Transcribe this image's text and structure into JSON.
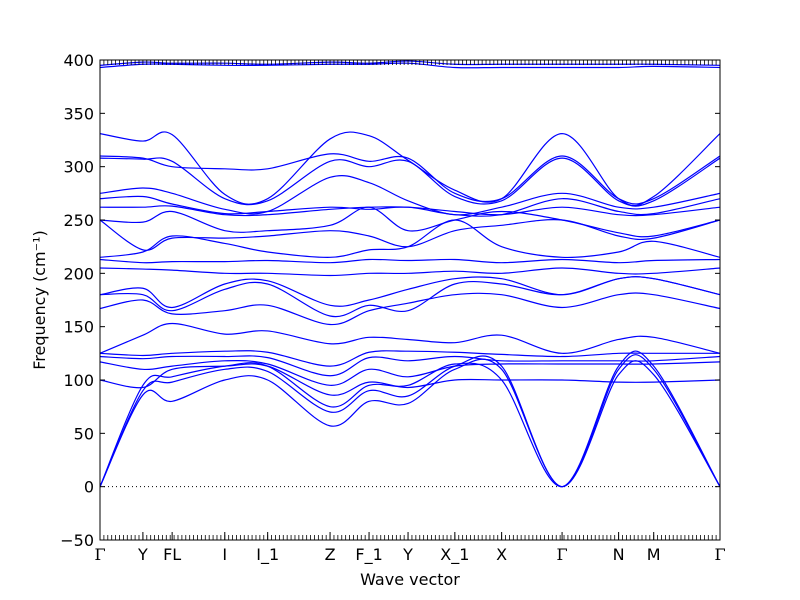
{
  "chart_data": {
    "type": "line",
    "title": "",
    "xlabel": "Wave vector",
    "ylabel": "Frequency (cm⁻¹)",
    "ylim": [
      -50,
      400
    ],
    "yticks": [
      -50,
      0,
      50,
      100,
      150,
      200,
      250,
      300,
      350,
      400
    ],
    "line_color": "#0000ff",
    "zero_line": {
      "y": 0,
      "style": "dotted",
      "color": "#000000"
    },
    "legend": "none",
    "grid": false,
    "xtick_labels": [
      {
        "label": "Γ",
        "x": 0
      },
      {
        "label": "Y",
        "x": 11
      },
      {
        "label": "FL",
        "x": 18.5
      },
      {
        "label": "I",
        "x": 32
      },
      {
        "label": "I_1",
        "x": 43
      },
      {
        "label": "Z",
        "x": 59
      },
      {
        "label": "F_1",
        "x": 69
      },
      {
        "label": "Y",
        "x": 79
      },
      {
        "label": "X_1",
        "x": 91
      },
      {
        "label": "X",
        "x": 103
      },
      {
        "label": "Γ",
        "x": 118.5
      },
      {
        "label": "N",
        "x": 133
      },
      {
        "label": "M",
        "x": 142
      },
      {
        "label": "Γ",
        "x": 159
      }
    ],
    "x_range": [
      0,
      159
    ],
    "series": [
      {
        "x": [
          0,
          11,
          18.5,
          32,
          43,
          59,
          69,
          79,
          91,
          103,
          118.5,
          133,
          142,
          159
        ],
        "values": [
          0,
          86,
          80,
          100,
          100,
          57,
          80,
          78,
          110,
          110,
          0,
          105,
          105,
          0
        ]
      },
      {
        "x": [
          0,
          11,
          18.5,
          32,
          43,
          59,
          69,
          79,
          91,
          103,
          118.5,
          133,
          142,
          159
        ],
        "values": [
          0,
          90,
          98,
          110,
          108,
          70,
          90,
          85,
          113,
          113,
          0,
          110,
          110,
          0
        ]
      },
      {
        "x": [
          0,
          11,
          18.5,
          32,
          43,
          59,
          69,
          79,
          91,
          103,
          118.5,
          133,
          142,
          159
        ],
        "values": [
          0,
          95,
          103,
          113,
          113,
          75,
          95,
          95,
          115,
          100,
          0,
          113,
          113,
          0
        ]
      },
      {
        "x": [
          0,
          11,
          18.5,
          32,
          43,
          59,
          69,
          79,
          91,
          103,
          118.5,
          133,
          142,
          159
        ],
        "values": [
          100,
          93,
          110,
          113,
          113,
          86,
          98,
          93,
          100,
          100,
          100,
          98,
          98,
          100
        ]
      },
      {
        "x": [
          0,
          11,
          18.5,
          32,
          43,
          59,
          69,
          79,
          91,
          103,
          118.5,
          133,
          142,
          159
        ],
        "values": [
          117,
          110,
          113,
          118,
          115,
          95,
          110,
          103,
          113,
          115,
          115,
          115,
          115,
          117
        ]
      },
      {
        "x": [
          0,
          11,
          18.5,
          32,
          43,
          59,
          69,
          79,
          91,
          103,
          118.5,
          133,
          142,
          159
        ],
        "values": [
          122,
          120,
          122,
          122,
          121,
          104,
          121,
          118,
          122,
          118,
          118,
          118,
          118,
          122
        ]
      },
      {
        "x": [
          0,
          11,
          18.5,
          32,
          43,
          59,
          69,
          79,
          91,
          103,
          118.5,
          133,
          142,
          159
        ],
        "values": [
          125,
          123,
          125,
          127,
          126,
          113,
          126,
          127,
          126,
          124,
          122,
          125,
          125,
          125
        ]
      },
      {
        "x": [
          0,
          11,
          18.5,
          32,
          43,
          59,
          69,
          79,
          91,
          103,
          118.5,
          133,
          142,
          159
        ],
        "values": [
          125,
          142,
          153,
          143,
          146,
          134,
          140,
          138,
          135,
          142,
          125,
          138,
          140,
          125
        ]
      },
      {
        "x": [
          0,
          11,
          18.5,
          32,
          43,
          59,
          69,
          79,
          91,
          103,
          118.5,
          133,
          142,
          159
        ],
        "values": [
          167,
          175,
          162,
          165,
          170,
          152,
          165,
          172,
          180,
          180,
          168,
          180,
          180,
          167
        ]
      },
      {
        "x": [
          0,
          11,
          18.5,
          32,
          43,
          59,
          69,
          79,
          91,
          103,
          118.5,
          133,
          142,
          159
        ],
        "values": [
          180,
          180,
          165,
          185,
          190,
          160,
          170,
          165,
          190,
          190,
          180,
          195,
          195,
          180
        ]
      },
      {
        "x": [
          0,
          11,
          18.5,
          32,
          43,
          59,
          69,
          79,
          91,
          103,
          118.5,
          133,
          142,
          159
        ],
        "values": [
          180,
          186,
          168,
          190,
          193,
          170,
          175,
          185,
          195,
          195,
          180,
          195,
          195,
          180
        ]
      },
      {
        "x": [
          0,
          11,
          18.5,
          32,
          43,
          59,
          69,
          79,
          91,
          103,
          118.5,
          133,
          142,
          159
        ],
        "values": [
          205,
          204,
          203,
          200,
          200,
          198,
          200,
          200,
          202,
          200,
          205,
          200,
          200,
          205
        ]
      },
      {
        "x": [
          0,
          11,
          18.5,
          32,
          43,
          59,
          69,
          79,
          91,
          103,
          118.5,
          133,
          142,
          159
        ],
        "values": [
          213,
          210,
          211,
          211,
          212,
          210,
          213,
          212,
          213,
          210,
          213,
          210,
          212,
          213
        ]
      },
      {
        "x": [
          0,
          11,
          18.5,
          32,
          43,
          59,
          69,
          79,
          91,
          103,
          118.5,
          133,
          142,
          159
        ],
        "values": [
          215,
          220,
          235,
          228,
          220,
          215,
          222,
          225,
          250,
          225,
          215,
          220,
          230,
          215
        ]
      },
      {
        "x": [
          0,
          11,
          18.5,
          32,
          43,
          59,
          69,
          79,
          91,
          103,
          118.5,
          133,
          142,
          159
        ],
        "values": [
          250,
          222,
          233,
          233,
          235,
          240,
          235,
          225,
          240,
          245,
          250,
          235,
          233,
          250
        ]
      },
      {
        "x": [
          0,
          11,
          18.5,
          32,
          43,
          59,
          69,
          79,
          91,
          103,
          118.5,
          133,
          142,
          159
        ],
        "values": [
          250,
          248,
          258,
          240,
          240,
          245,
          262,
          240,
          250,
          258,
          250,
          238,
          235,
          250
        ]
      },
      {
        "x": [
          0,
          11,
          18.5,
          32,
          43,
          59,
          69,
          79,
          91,
          103,
          118.5,
          133,
          142,
          159
        ],
        "values": [
          262,
          262,
          263,
          255,
          255,
          260,
          262,
          262,
          258,
          255,
          262,
          255,
          255,
          262
        ]
      },
      {
        "x": [
          0,
          11,
          18.5,
          32,
          43,
          59,
          69,
          79,
          91,
          103,
          118.5,
          133,
          142,
          159
        ],
        "values": [
          270,
          272,
          265,
          256,
          258,
          262,
          260,
          262,
          255,
          255,
          270,
          258,
          256,
          270
        ]
      },
      {
        "x": [
          0,
          11,
          18.5,
          32,
          43,
          59,
          69,
          79,
          91,
          103,
          118.5,
          133,
          142,
          159
        ],
        "values": [
          275,
          280,
          275,
          260,
          258,
          290,
          285,
          268,
          255,
          262,
          275,
          262,
          262,
          275
        ]
      },
      {
        "x": [
          0,
          11,
          18.5,
          32,
          43,
          59,
          69,
          79,
          91,
          103,
          118.5,
          133,
          142,
          159
        ],
        "values": [
          308,
          307,
          305,
          270,
          268,
          305,
          300,
          305,
          272,
          268,
          308,
          268,
          268,
          308
        ]
      },
      {
        "x": [
          0,
          11,
          18.5,
          32,
          43,
          59,
          69,
          79,
          91,
          103,
          118.5,
          133,
          142,
          159
        ],
        "values": [
          310,
          308,
          300,
          298,
          298,
          312,
          305,
          308,
          275,
          270,
          310,
          270,
          270,
          310
        ]
      },
      {
        "x": [
          0,
          11,
          18.5,
          32,
          43,
          59,
          69,
          79,
          91,
          103,
          118.5,
          133,
          142,
          159
        ],
        "values": [
          331,
          324,
          330,
          274,
          270,
          326,
          329,
          306,
          278,
          270,
          331,
          270,
          272,
          331
        ]
      },
      {
        "x": [
          0,
          11,
          18.5,
          32,
          43,
          59,
          69,
          79,
          91,
          103,
          118.5,
          133,
          142,
          159
        ],
        "values": [
          393,
          396,
          396,
          395,
          395,
          396,
          396,
          397,
          393,
          393,
          393,
          393,
          394,
          393
        ]
      },
      {
        "x": [
          0,
          11,
          18.5,
          32,
          43,
          59,
          69,
          79,
          91,
          103,
          118.5,
          133,
          142,
          159
        ],
        "values": [
          395,
          398,
          397,
          397,
          396,
          398,
          397,
          399,
          396,
          396,
          396,
          396,
          396,
          395
        ]
      }
    ]
  }
}
